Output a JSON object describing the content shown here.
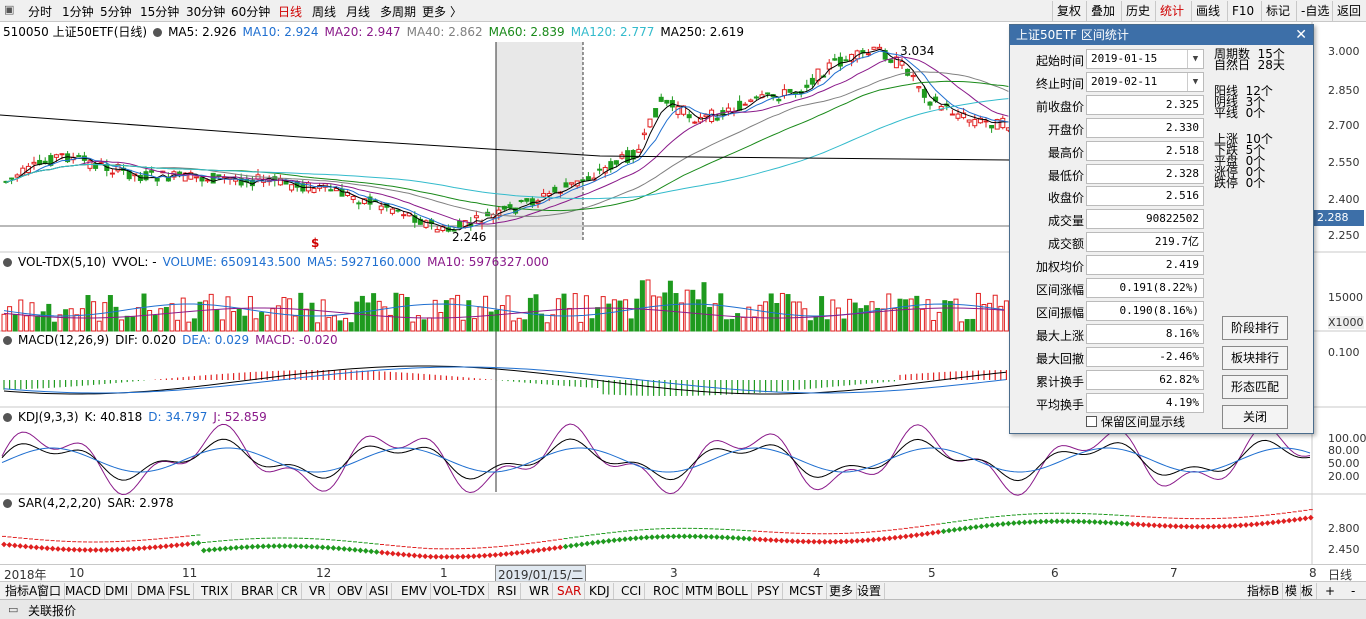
{
  "topbar": {
    "periods": [
      "分时",
      "1分钟",
      "5分钟",
      "15分钟",
      "30分钟",
      "60分钟",
      "日线",
      "周线",
      "月线",
      "多周期",
      "更多"
    ],
    "more_arrow": "〉",
    "right_buttons": [
      "复权",
      "叠加",
      "历史",
      "统计",
      "画线",
      "F10",
      "标记",
      "-自选",
      "返回"
    ]
  },
  "main_legend": {
    "symbol": "510050 上证50ETF(日线)",
    "ma": [
      {
        "label": "MA5: 2.926",
        "color": "#000000"
      },
      {
        "label": "MA10: 2.924",
        "color": "#1f6fd0"
      },
      {
        "label": "MA20: 2.947",
        "color": "#8a1a8a"
      },
      {
        "label": "MA40: 2.862",
        "color": "#808080"
      },
      {
        "label": "MA60: 2.839",
        "color": "#1a8a1a"
      },
      {
        "label": "MA120: 2.777",
        "color": "#33bbcc"
      },
      {
        "label": "MA250: 2.619",
        "color": "#000000"
      }
    ],
    "high_label": "3.034",
    "low_label": "2.246",
    "price_tag": "2.288",
    "s_marker": "$"
  },
  "price_axis": [
    "3.000",
    "2.850",
    "2.700",
    "2.550",
    "2.400",
    "2.250"
  ],
  "vol_legend": {
    "name": "VOL-TDX(5,10)",
    "vvol": "VVOL: -",
    "volume": "VOLUME: 6509143.500",
    "ma5": "MA5: 5927160.000",
    "ma10": "MA10: 5976327.000"
  },
  "vol_axis": [
    "15000",
    "X1000"
  ],
  "macd_legend": {
    "name": "MACD(12,26,9)",
    "dif": "DIF: 0.020",
    "dea": "DEA: 0.029",
    "macd": "MACD: -0.020"
  },
  "macd_axis": [
    "0.100"
  ],
  "kdj_legend": {
    "name": "KDJ(9,3,3)",
    "k": "K: 40.818",
    "d": "D: 34.797",
    "j": "J: 52.859"
  },
  "kdj_axis": [
    "100.00",
    "80.00",
    "50.00",
    "20.00"
  ],
  "sar_legend": {
    "name": "SAR(4,2,2,20)",
    "sar": "SAR: 2.978"
  },
  "sar_axis": [
    "2.800",
    "2.450"
  ],
  "xaxis": {
    "labels": [
      "2018年",
      "10",
      "11",
      "12",
      "1",
      "2019/01/15/二",
      "3",
      "4",
      "5",
      "6",
      "7",
      "8"
    ],
    "right": "日线"
  },
  "tabs": [
    "指标A",
    "窗口",
    "MACD",
    "DMI",
    "DMA",
    "FSL",
    "TRIX",
    "BRAR",
    "CR",
    "VR",
    "OBV",
    "ASI",
    "EMV",
    "VOL-TDX",
    "RSI",
    "WR",
    "SAR",
    "KDJ",
    "CCI",
    "ROC",
    "MTM",
    "BOLL",
    "PSY",
    "MCST",
    "更多",
    "设置"
  ],
  "tabs_right": [
    "指标B",
    "模",
    "板",
    "+",
    "-"
  ],
  "statusbar": {
    "label": "关联报价"
  },
  "dialog": {
    "title": "上证50ETF 区间统计",
    "fields": [
      {
        "label": "起始时间",
        "value": "2019-01-15",
        "type": "select"
      },
      {
        "label": "终止时间",
        "value": "2019-02-11",
        "type": "select"
      },
      {
        "label": "前收盘价",
        "value": "2.325"
      },
      {
        "label": "开盘价",
        "value": "2.330"
      },
      {
        "label": "最高价",
        "value": "2.518"
      },
      {
        "label": "最低价",
        "value": "2.328"
      },
      {
        "label": "收盘价",
        "value": "2.516"
      },
      {
        "label": "成交量",
        "value": "90822502"
      },
      {
        "label": "成交额",
        "value": "219.7亿"
      },
      {
        "label": "加权均价",
        "value": "2.419"
      },
      {
        "label": "区间涨幅",
        "value": "0.191(8.22%)"
      },
      {
        "label": "区间振幅",
        "value": "0.190(8.16%)"
      },
      {
        "label": "最大上涨",
        "value": "8.16%"
      },
      {
        "label": "最大回撤",
        "value": "-2.46%"
      },
      {
        "label": "累计换手",
        "value": "62.82%"
      },
      {
        "label": "平均换手",
        "value": "4.19%"
      }
    ],
    "stats1": "周期数  15个\n自然日  28天",
    "stats2": "阳线  12个\n阴线  3个\n平线  0个",
    "stats3": "上涨  10个\n下跌  5个\n平盘  0个\n涨停  0个\n跌停  0个",
    "buttons": [
      "阶段排行",
      "板块排行",
      "形态匹配",
      "关闭"
    ],
    "checkbox": "保留区间显示线"
  },
  "colors": {
    "up": "#e02020",
    "down": "#1f9a1f",
    "accent": "#d00000",
    "title": "#3d6fa8"
  }
}
